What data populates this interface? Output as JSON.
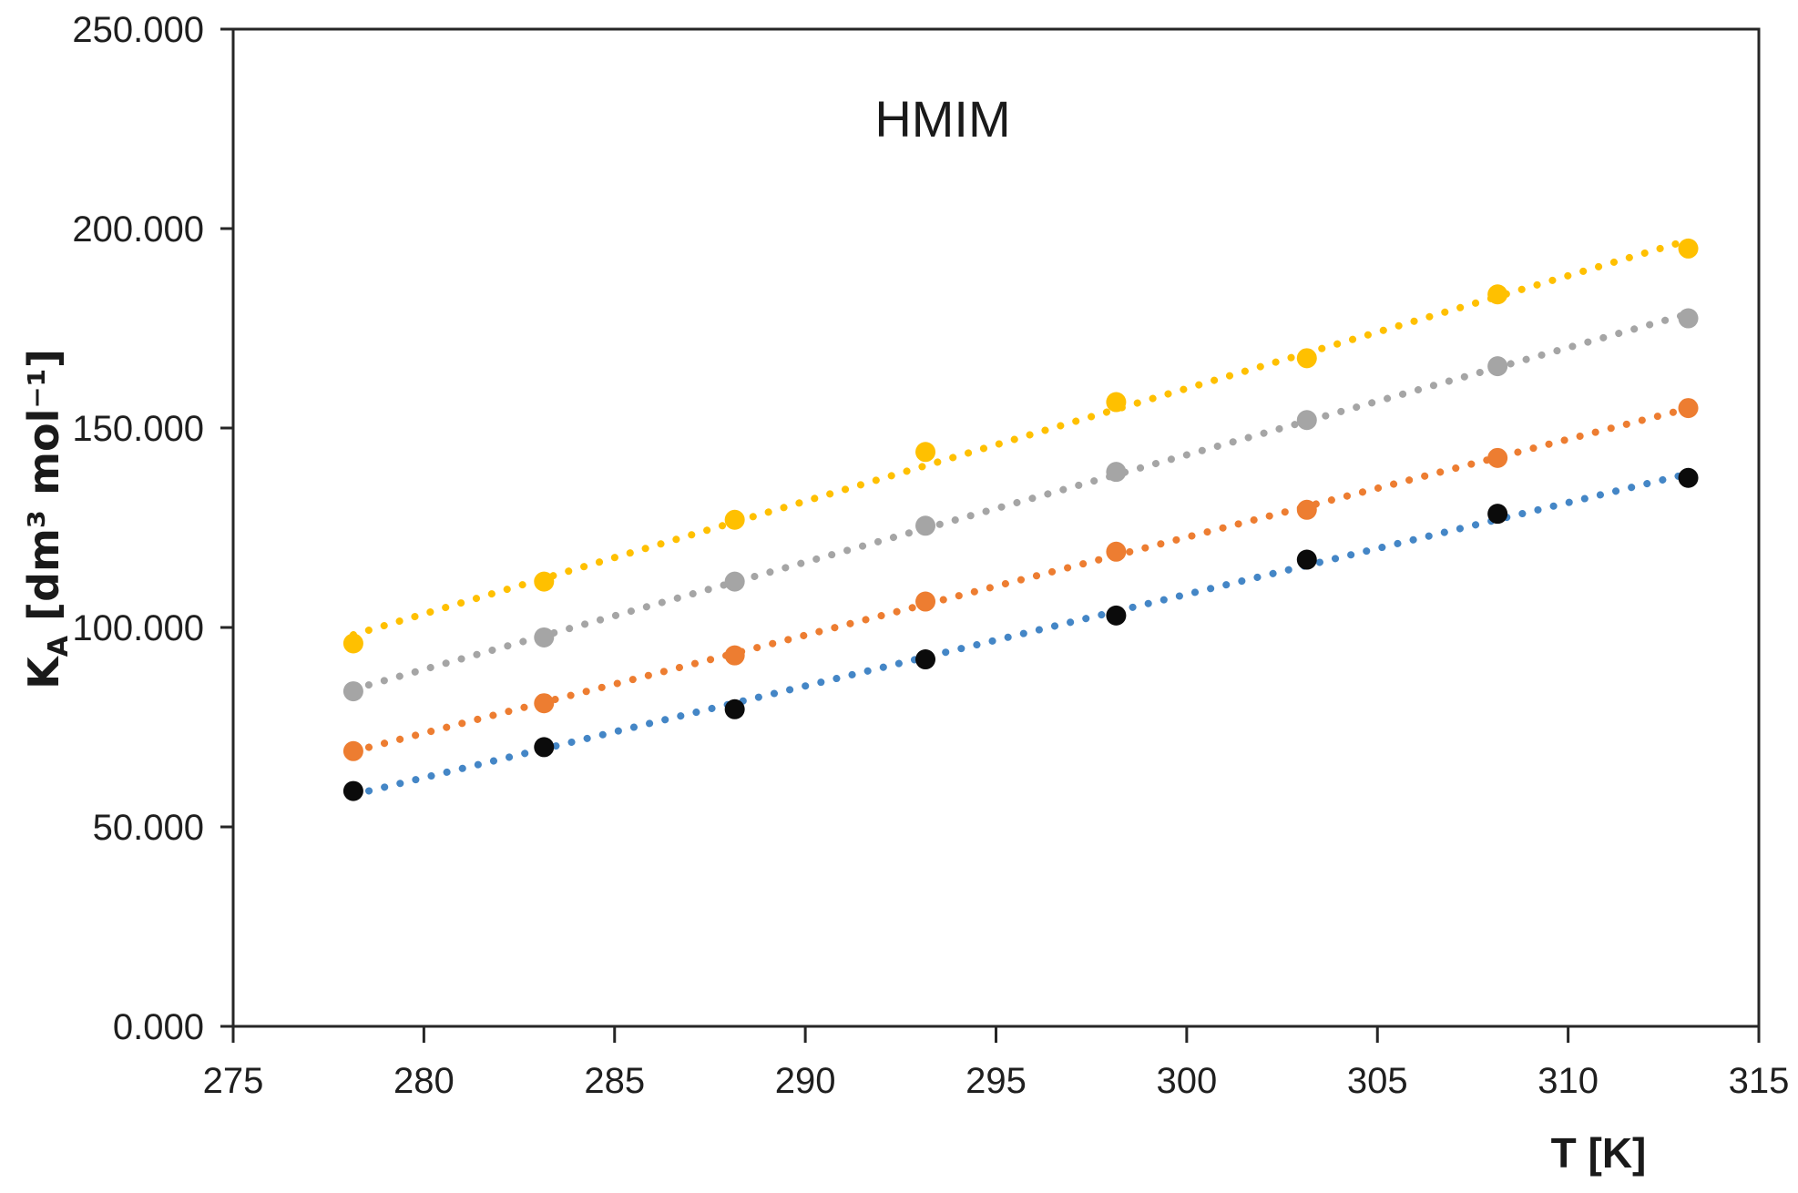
{
  "chart_data": {
    "type": "scatter",
    "title": "HMIM",
    "xlabel": "T [K]",
    "ylabel": "K_A [dm³ mol⁻¹]",
    "ylabel_parts": {
      "base": "K",
      "sub": "A",
      "rest": " [dm³ mol⁻¹]"
    },
    "xlim": [
      275,
      315
    ],
    "ylim": [
      0,
      250000
    ],
    "grid": false,
    "legend": "none",
    "x_ticks": [
      {
        "value": 275,
        "label": "275"
      },
      {
        "value": 280,
        "label": "280"
      },
      {
        "value": 285,
        "label": "285"
      },
      {
        "value": 290,
        "label": "290"
      },
      {
        "value": 295,
        "label": "295"
      },
      {
        "value": 300,
        "label": "300"
      },
      {
        "value": 305,
        "label": "305"
      },
      {
        "value": 310,
        "label": "310"
      },
      {
        "value": 315,
        "label": "315"
      }
    ],
    "y_ticks": [
      {
        "value": 0,
        "label": "0.000"
      },
      {
        "value": 50000,
        "label": "50.000"
      },
      {
        "value": 100000,
        "label": "100.000"
      },
      {
        "value": 150000,
        "label": "150.000"
      },
      {
        "value": 200000,
        "label": "200.000"
      },
      {
        "value": 250000,
        "label": "250.000"
      }
    ],
    "x": [
      278.15,
      283.15,
      288.15,
      293.15,
      298.15,
      303.15,
      308.15,
      313.15
    ],
    "series": [
      {
        "name": "series-black",
        "marker_color": "#0b0b0b",
        "trend_color": "#4486c6",
        "trendline": "linear-dotted",
        "values": [
          59000,
          70000,
          79500,
          92000,
          103000,
          117000,
          128500,
          137500
        ]
      },
      {
        "name": "series-orange",
        "marker_color": "#ED7D31",
        "trend_color": "#ED7D31",
        "trendline": "linear-dotted",
        "values": [
          69000,
          81000,
          93000,
          106500,
          119000,
          129500,
          142500,
          155000
        ]
      },
      {
        "name": "series-gray",
        "marker_color": "#A5A5A5",
        "trend_color": "#A5A5A5",
        "trendline": "linear-dotted",
        "values": [
          84000,
          97500,
          111500,
          125500,
          139000,
          152000,
          165500,
          177500
        ]
      },
      {
        "name": "series-yellow",
        "marker_color": "#FFC000",
        "trend_color": "#FFC000",
        "trendline": "linear-dotted",
        "values": [
          96000,
          111500,
          127000,
          144000,
          156500,
          167500,
          183500,
          195000
        ]
      }
    ],
    "axis_color": "#262626",
    "background_color": "#ffffff"
  }
}
